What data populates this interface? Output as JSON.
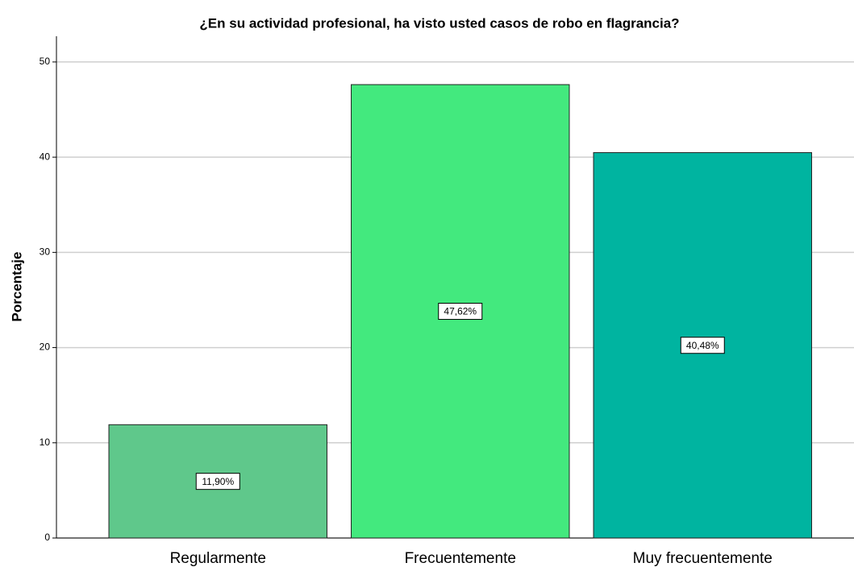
{
  "chart_data": {
    "type": "bar",
    "title": "¿En su actividad profesional, ha visto usted casos de robo en flagrancia?",
    "y_label": "Porcentaje",
    "categories": [
      "Regularmente",
      "Frecuentemente",
      "Muy frecuentemente"
    ],
    "values": [
      11.9,
      47.62,
      40.48
    ],
    "value_labels": [
      "11,90%",
      "47,62%",
      "40,48%"
    ],
    "colors": [
      "#5fc88b",
      "#43e97e",
      "#00b4a0"
    ],
    "ylim": [
      0,
      52.7
    ],
    "yticks": [
      0,
      10,
      20,
      30,
      40,
      50
    ],
    "grid": true
  }
}
